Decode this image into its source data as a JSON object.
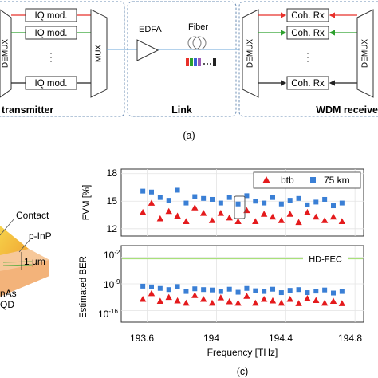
{
  "panel_a": {
    "transmitter": {
      "demux_label": "DEMUX",
      "mux_label": "MUX",
      "modulators": [
        "IQ mod.",
        "IQ mod.",
        "IQ mod."
      ],
      "dots": "⋮",
      "caption": "transmitter"
    },
    "link": {
      "edfa_label": "EDFA",
      "fiber_label": "Fiber",
      "caption": "Link"
    },
    "receiver": {
      "demux_left": "DEMUX",
      "demux_right": "DEMUX",
      "receivers": [
        "Coh. Rx",
        "Coh. Rx",
        "Coh. Rx"
      ],
      "dots": "⋮",
      "caption": "WDM receive"
    },
    "label": "(a)",
    "colors": {
      "red": "#e8302a",
      "green": "#2ca02c",
      "black": "#222222",
      "box": "#6e8fb6"
    }
  },
  "panel_b": {
    "labels": {
      "contact": "Contact",
      "pinp": "p-InP",
      "dimension": "1 µm",
      "inas": "nAs",
      "qd": "QD"
    }
  },
  "panel_c": {
    "label": "(c)",
    "xlabel": "Frequency [THz]",
    "xticks": [
      "193.6",
      "194",
      "194.4",
      "194.8"
    ],
    "top_ylabel": "EVM  [%]",
    "top_yticks": [
      "18",
      "15",
      "12"
    ],
    "bottom_ylabel": "Estimated BER",
    "bottom_yticks": [
      "10",
      "10",
      "10"
    ],
    "bottom_ytick_exps": [
      "-2",
      "-9",
      "-16"
    ],
    "legend": {
      "btb": "btb",
      "km": "75 km"
    },
    "fec_label": "HD-FEC",
    "colors": {
      "btb": "#e41a1c",
      "km": "#3a7fd5",
      "fec": "#a8e07a"
    }
  },
  "chart_data": [
    {
      "type": "scatter",
      "ylabel": "EVM  [%]",
      "xlim": [
        193.45,
        194.85
      ],
      "ylim": [
        11.2,
        18.5
      ],
      "legend_position": "top-right",
      "series": [
        {
          "name": "btb",
          "x": [
            193.575,
            193.625,
            193.675,
            193.725,
            193.775,
            193.825,
            193.875,
            193.925,
            193.975,
            194.025,
            194.075,
            194.125,
            194.175,
            194.225,
            194.275,
            194.325,
            194.375,
            194.425,
            194.475,
            194.525,
            194.575,
            194.625,
            194.675,
            194.725
          ],
          "y": [
            13.8,
            14.8,
            13.1,
            13.9,
            13.4,
            12.8,
            14.3,
            13.7,
            12.9,
            13.7,
            13.2,
            12.8,
            14.0,
            12.8,
            13.6,
            13.3,
            12.9,
            13.6,
            12.7,
            13.8,
            13.3,
            12.9,
            13.3,
            12.8
          ]
        },
        {
          "name": "75 km",
          "x": [
            193.575,
            193.625,
            193.675,
            193.725,
            193.775,
            193.825,
            193.875,
            193.925,
            193.975,
            194.025,
            194.075,
            194.125,
            194.175,
            194.225,
            194.275,
            194.325,
            194.375,
            194.425,
            194.475,
            194.525,
            194.575,
            194.625,
            194.675,
            194.725
          ],
          "y": [
            16.1,
            16.0,
            15.4,
            15.1,
            16.2,
            14.8,
            15.5,
            15.3,
            15.2,
            14.8,
            15.4,
            14.7,
            15.6,
            15.0,
            14.8,
            15.4,
            14.7,
            15.1,
            15.3,
            14.6,
            14.9,
            15.2,
            14.5,
            14.8
          ]
        }
      ]
    },
    {
      "type": "scatter",
      "ylabel": "Estimated BER",
      "y_scale": "log",
      "xlim": [
        193.45,
        194.85
      ],
      "ylim_exp": [
        -19,
        1
      ],
      "hline": {
        "label": "HD-FEC",
        "y_exp": -2.4
      },
      "series": [
        {
          "name": "btb",
          "x": [
            193.575,
            193.625,
            193.675,
            193.725,
            193.775,
            193.825,
            193.875,
            193.925,
            193.975,
            194.025,
            194.075,
            194.125,
            194.175,
            194.225,
            194.275,
            194.325,
            194.375,
            194.425,
            194.475,
            194.525,
            194.575,
            194.625,
            194.675,
            194.725
          ],
          "y_exp": [
            -13.0,
            -11.5,
            -13.5,
            -12.5,
            -13.4,
            -14.0,
            -12.0,
            -13.0,
            -14.0,
            -12.6,
            -13.6,
            -14.0,
            -12.2,
            -14.0,
            -13.0,
            -13.4,
            -14.0,
            -13.0,
            -14.1,
            -12.8,
            -13.3,
            -14.0,
            -13.5,
            -14.1
          ]
        },
        {
          "name": "75 km",
          "x": [
            193.575,
            193.625,
            193.675,
            193.725,
            193.775,
            193.825,
            193.875,
            193.925,
            193.975,
            194.025,
            194.075,
            194.125,
            194.175,
            194.225,
            194.275,
            194.325,
            194.375,
            194.425,
            194.475,
            194.525,
            194.575,
            194.625,
            194.675,
            194.725
          ],
          "y_exp": [
            -9.6,
            -9.8,
            -10.2,
            -10.5,
            -9.7,
            -11.0,
            -10.3,
            -10.5,
            -10.6,
            -11.0,
            -10.4,
            -11.2,
            -10.2,
            -10.8,
            -11.0,
            -10.4,
            -11.3,
            -10.7,
            -10.5,
            -11.3,
            -10.9,
            -10.6,
            -11.4,
            -11.0
          ]
        }
      ]
    }
  ]
}
